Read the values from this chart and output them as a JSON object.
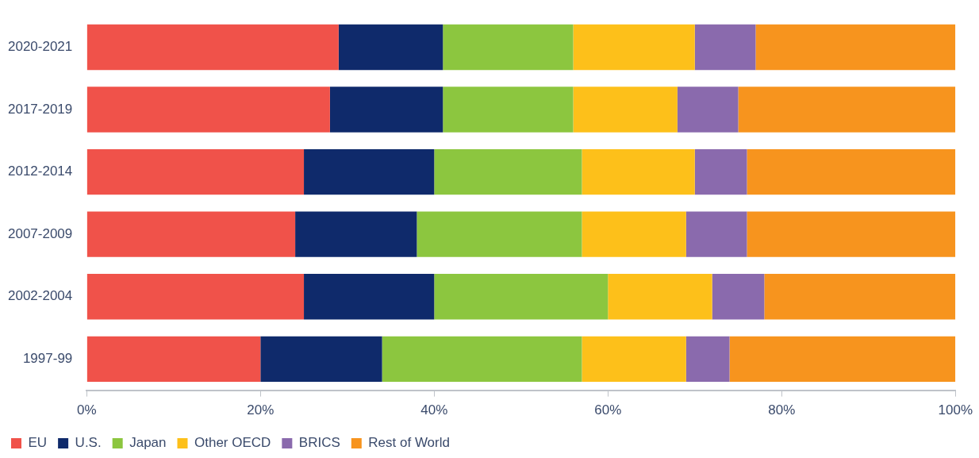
{
  "chart_data": {
    "type": "bar",
    "orientation": "horizontal",
    "stacked": true,
    "categories": [
      "2020-2021",
      "2017-2019",
      "2012-2014",
      "2007-2009",
      "2002-2004",
      "1997-99"
    ],
    "series": [
      {
        "name": "EU",
        "color": "#f0524a",
        "values": [
          29,
          28,
          25,
          24,
          25,
          20
        ]
      },
      {
        "name": "U.S.",
        "color": "#0f2a6b",
        "values": [
          12,
          13,
          15,
          14,
          15,
          14
        ]
      },
      {
        "name": "Japan",
        "color": "#8cc63f",
        "values": [
          15,
          15,
          17,
          19,
          20,
          23
        ]
      },
      {
        "name": "Other OECD",
        "color": "#fdc01a",
        "values": [
          14,
          12,
          13,
          12,
          12,
          12
        ]
      },
      {
        "name": "BRICS",
        "color": "#8a6aad",
        "values": [
          7,
          7,
          6,
          7,
          6,
          5
        ]
      },
      {
        "name": "Rest of World",
        "color": "#f7941e",
        "values": [
          23,
          25,
          24,
          24,
          22,
          26
        ]
      }
    ],
    "xlim": [
      0,
      100
    ],
    "xticks": [
      {
        "value": 0,
        "label": "0%"
      },
      {
        "value": 20,
        "label": "20%"
      },
      {
        "value": 40,
        "label": "40%"
      },
      {
        "value": 60,
        "label": "60%"
      },
      {
        "value": 80,
        "label": "80%"
      },
      {
        "value": 100,
        "label": "100%"
      }
    ],
    "grid": false,
    "legend": "bottom left"
  }
}
